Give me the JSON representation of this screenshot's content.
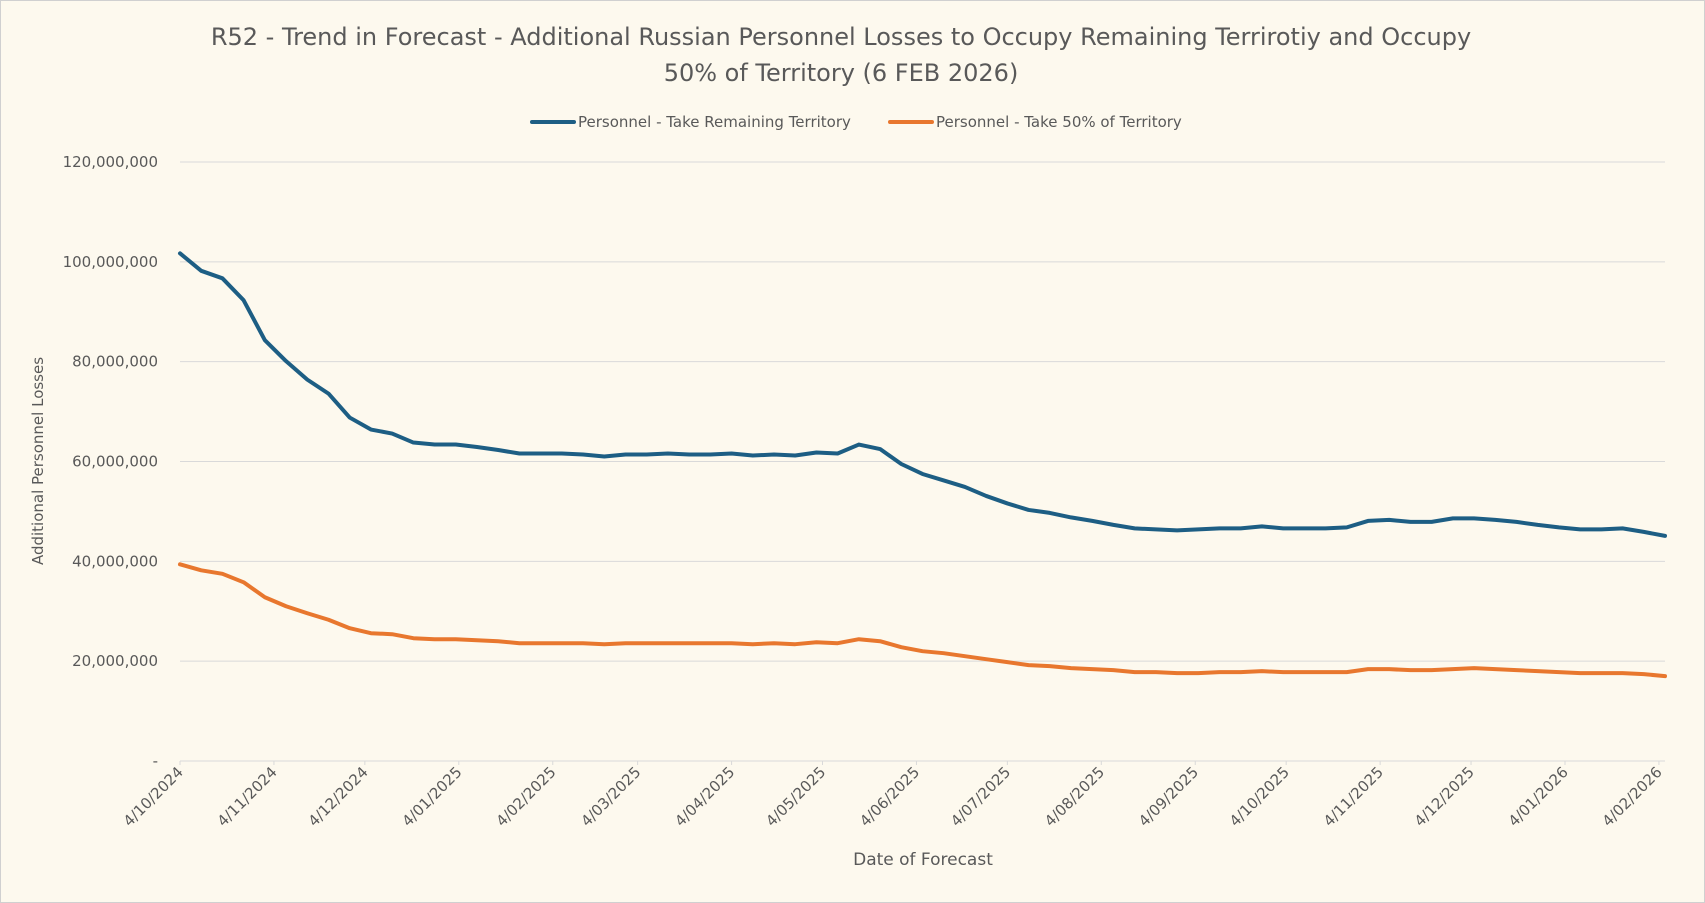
{
  "chart_data": {
    "type": "line",
    "title": "R52 - Trend in Forecast - Additional Russian Personnel Losses to Occupy Remaining Terrirotiy and Occupy 50% of Territory  (6 FEB 2026)",
    "x_label": "Date of Forecast",
    "y_label": "Additional Personnel Losses",
    "x": [
      "2024-10-04",
      "2024-10-11",
      "2024-10-18",
      "2024-10-25",
      "2024-11-01",
      "2024-11-08",
      "2024-11-15",
      "2024-11-22",
      "2024-11-29",
      "2024-12-06",
      "2024-12-13",
      "2024-12-20",
      "2024-12-27",
      "2025-01-03",
      "2025-01-10",
      "2025-01-17",
      "2025-01-24",
      "2025-01-31",
      "2025-02-07",
      "2025-02-14",
      "2025-02-21",
      "2025-02-28",
      "2025-03-07",
      "2025-03-14",
      "2025-03-21",
      "2025-03-28",
      "2025-04-04",
      "2025-04-11",
      "2025-04-18",
      "2025-04-25",
      "2025-05-02",
      "2025-05-09",
      "2025-05-16",
      "2025-05-23",
      "2025-05-30",
      "2025-06-06",
      "2025-06-13",
      "2025-06-20",
      "2025-06-27",
      "2025-07-04",
      "2025-07-11",
      "2025-07-18",
      "2025-07-25",
      "2025-08-01",
      "2025-08-08",
      "2025-08-15",
      "2025-08-22",
      "2025-08-29",
      "2025-09-05",
      "2025-09-12",
      "2025-09-19",
      "2025-09-26",
      "2025-10-03",
      "2025-10-10",
      "2025-10-17",
      "2025-10-24",
      "2025-10-31",
      "2025-11-07",
      "2025-11-14",
      "2025-11-21",
      "2025-11-28",
      "2025-12-05",
      "2025-12-12",
      "2025-12-19",
      "2025-12-26",
      "2026-01-02",
      "2026-01-09",
      "2026-01-16",
      "2026-01-23",
      "2026-01-30",
      "2026-02-06"
    ],
    "xlim": [
      "2024-10-04",
      "2026-02-06"
    ],
    "xticks": [
      {
        "value": "2024-10-04",
        "label": "4/10/2024"
      },
      {
        "value": "2024-11-04",
        "label": "4/11/2024"
      },
      {
        "value": "2024-12-04",
        "label": "4/12/2024"
      },
      {
        "value": "2025-01-04",
        "label": "4/01/2025"
      },
      {
        "value": "2025-02-04",
        "label": "4/02/2025"
      },
      {
        "value": "2025-03-04",
        "label": "4/03/2025"
      },
      {
        "value": "2025-04-04",
        "label": "4/04/2025"
      },
      {
        "value": "2025-05-04",
        "label": "4/05/2025"
      },
      {
        "value": "2025-06-04",
        "label": "4/06/2025"
      },
      {
        "value": "2025-07-04",
        "label": "4/07/2025"
      },
      {
        "value": "2025-08-04",
        "label": "4/08/2025"
      },
      {
        "value": "2025-09-04",
        "label": "4/09/2025"
      },
      {
        "value": "2025-10-04",
        "label": "4/10/2025"
      },
      {
        "value": "2025-11-04",
        "label": "4/11/2025"
      },
      {
        "value": "2025-12-04",
        "label": "4/12/2025"
      },
      {
        "value": "2026-01-04",
        "label": "4/01/2026"
      },
      {
        "value": "2026-02-04",
        "label": "4/02/2026"
      }
    ],
    "ylim": [
      0,
      120000000
    ],
    "yticks": [
      {
        "value": 0,
        "label": "-"
      },
      {
        "value": 20000000,
        "label": "20,000,000"
      },
      {
        "value": 40000000,
        "label": "40,000,000"
      },
      {
        "value": 60000000,
        "label": "60,000,000"
      },
      {
        "value": 80000000,
        "label": "80,000,000"
      },
      {
        "value": 100000000,
        "label": "100,000,000"
      },
      {
        "value": 120000000,
        "label": "120,000,000"
      }
    ],
    "grid": true,
    "legend": "top",
    "series": [
      {
        "name": "Personnel - Take Remaining Territory",
        "color": "#1d5e84",
        "values": [
          101700000,
          98200000,
          96700000,
          92300000,
          84300000,
          80100000,
          76400000,
          73600000,
          68800000,
          66400000,
          65600000,
          63800000,
          63400000,
          63400000,
          62900000,
          62300000,
          61600000,
          61600000,
          61600000,
          61400000,
          61000000,
          61400000,
          61400000,
          61600000,
          61400000,
          61400000,
          61600000,
          61200000,
          61400000,
          61200000,
          61800000,
          61600000,
          63400000,
          62500000,
          59500000,
          57500000,
          56200000,
          54900000,
          53100000,
          51600000,
          50300000,
          49700000,
          48800000,
          48100000,
          47300000,
          46600000,
          46400000,
          46200000,
          46400000,
          46600000,
          46600000,
          47000000,
          46600000,
          46600000,
          46600000,
          46800000,
          48100000,
          48300000,
          47900000,
          47900000,
          48600000,
          48600000,
          48300000,
          47900000,
          47300000,
          46800000,
          46400000,
          46400000,
          46600000,
          45900000,
          45100000
        ]
      },
      {
        "name": "Personnel - Take 50% of Territory",
        "color": "#e8772e",
        "values": [
          39400000,
          38200000,
          37500000,
          35800000,
          32800000,
          31000000,
          29600000,
          28300000,
          26600000,
          25600000,
          25400000,
          24600000,
          24400000,
          24400000,
          24200000,
          24000000,
          23600000,
          23600000,
          23600000,
          23600000,
          23400000,
          23600000,
          23600000,
          23600000,
          23600000,
          23600000,
          23600000,
          23400000,
          23600000,
          23400000,
          23800000,
          23600000,
          24400000,
          24000000,
          22800000,
          22000000,
          21600000,
          21000000,
          20400000,
          19800000,
          19200000,
          19000000,
          18600000,
          18400000,
          18200000,
          17800000,
          17800000,
          17600000,
          17600000,
          17800000,
          17800000,
          18000000,
          17800000,
          17800000,
          17800000,
          17800000,
          18400000,
          18400000,
          18200000,
          18200000,
          18400000,
          18600000,
          18400000,
          18200000,
          18000000,
          17800000,
          17600000,
          17600000,
          17600000,
          17400000,
          17000000
        ]
      }
    ]
  }
}
